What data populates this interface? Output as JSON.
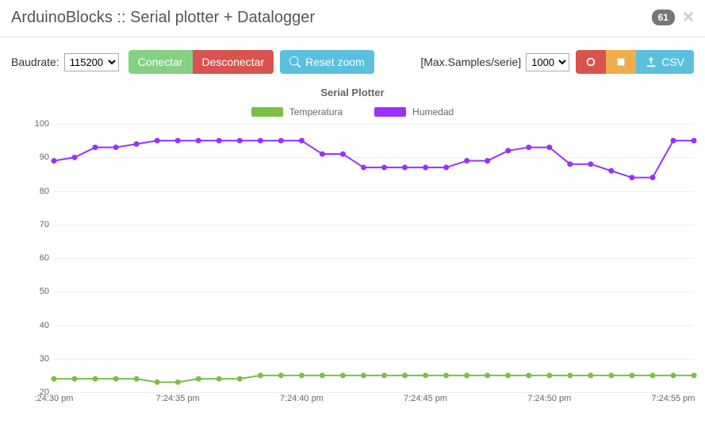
{
  "header": {
    "title": "ArduinoBlocks :: Serial plotter + Datalogger",
    "counter": "61"
  },
  "toolbar": {
    "baudrate_label": "Baudrate:",
    "baudrate_value": "115200",
    "connect_label": "Conectar",
    "disconnect_label": "Desconectar",
    "reset_zoom_label": "Reset zoom",
    "max_samples_label": "[Max.Samples/serie]",
    "max_samples_value": "1000",
    "csv_label": "CSV"
  },
  "chart": {
    "title": "Serial Plotter",
    "ylim": [
      20,
      100
    ],
    "ytick_step": 10,
    "background_color": "#ffffff",
    "grid_color": "#eeeeee",
    "line_width": 2,
    "marker_radius": 3.5,
    "series": [
      {
        "name": "Temperatura",
        "color": "#7bc043",
        "values": [
          24,
          24,
          24,
          24,
          24,
          23,
          23,
          24,
          24,
          24,
          25,
          25,
          25,
          25,
          25,
          25,
          25,
          25,
          25,
          25,
          25,
          25,
          25,
          25,
          25,
          25,
          25,
          25,
          25,
          25,
          25,
          25
        ]
      },
      {
        "name": "Humedad",
        "color": "#9b30ff",
        "values": [
          89,
          90,
          93,
          93,
          94,
          95,
          95,
          95,
          95,
          95,
          95,
          95,
          95,
          91,
          91,
          87,
          87,
          87,
          87,
          87,
          89,
          89,
          92,
          93,
          93,
          88,
          88,
          86,
          84,
          84,
          95,
          95
        ]
      }
    ],
    "x_labels": [
      {
        "text": ":24:30 pm",
        "index": 0
      },
      {
        "text": "7:24:35 pm",
        "index": 6
      },
      {
        "text": "7:24:40 pm",
        "index": 12
      },
      {
        "text": "7:24:45 pm",
        "index": 18
      },
      {
        "text": "7:24:50 pm",
        "index": 24
      },
      {
        "text": "7:24:55 pm",
        "index": 30
      }
    ]
  }
}
